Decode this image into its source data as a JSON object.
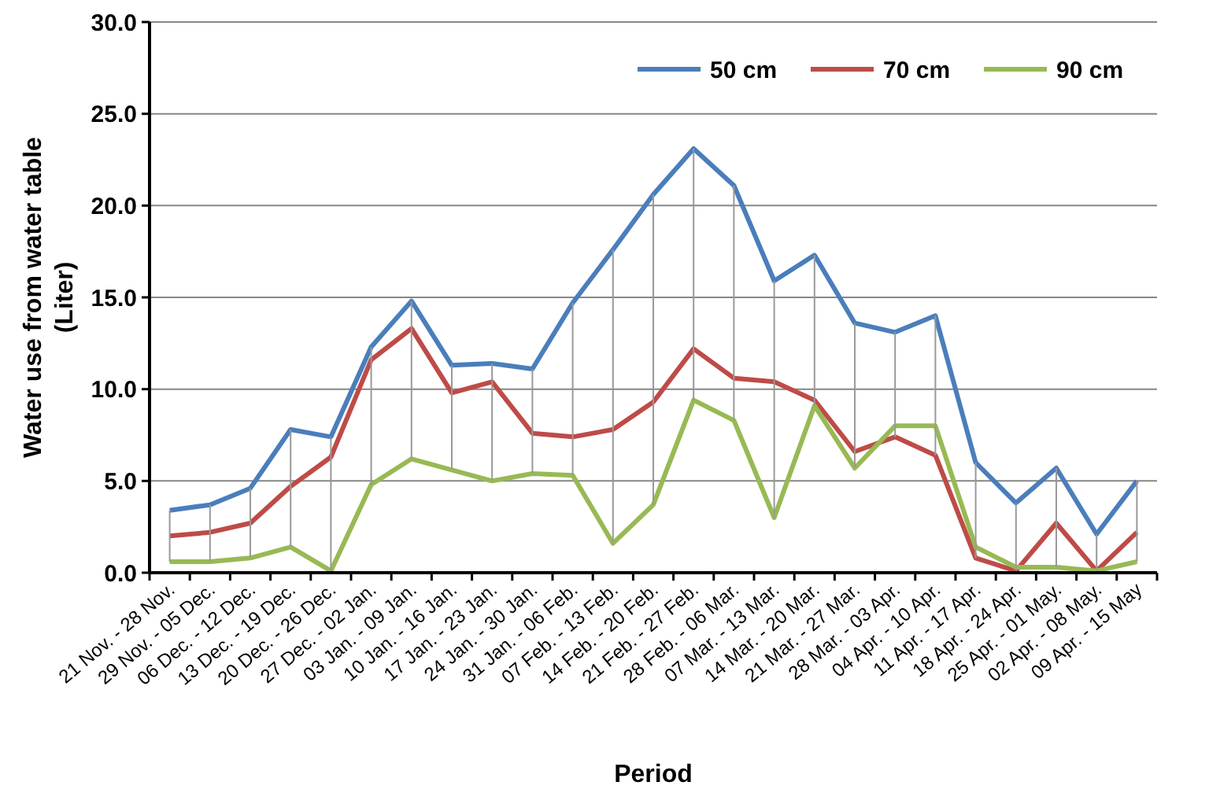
{
  "chart_data": {
    "type": "line",
    "xlabel": "Period",
    "ylabel": "Water use from water table (Liter)",
    "categories": [
      "21 Nov. - 28 Nov.",
      "29 Nov. - 05 Dec.",
      "06 Dec. - 12 Dec.",
      "13 Dec. - 19 Dec.",
      "20 Dec. - 26 Dec.",
      "27 Dec. - 02 Jan.",
      "03 Jan. - 09 Jan.",
      "10 Jan. - 16 Jan.",
      "17 Jan. - 23 Jan.",
      "24 Jan. - 30 Jan.",
      "31 Jan. - 06 Feb.",
      "07 Feb. - 13  Feb.",
      "14 Feb. - 20 Feb.",
      "21 Feb. - 27 Feb.",
      "28 Feb. - 06 Mar.",
      "07 Mar. - 13 Mar.",
      "14 Mar. - 20 Mar.",
      "21 Mar. - 27 Mar.",
      "28 Mar. - 03 Apr.",
      "04 Apr. - 10 Apr.",
      "11 Apr. - 17 Apr.",
      "18 Apr. - 24 Apr.",
      "25 Apr. - 01 May.",
      "02 Apr. - 08 May.",
      "09 Apr. - 15 May"
    ],
    "series": [
      {
        "name": "50 cm",
        "color": "#4a7ebb",
        "values": [
          3.4,
          3.7,
          4.6,
          7.8,
          7.4,
          12.3,
          14.8,
          11.3,
          11.4,
          11.1,
          14.7,
          17.6,
          20.6,
          23.1,
          21.1,
          15.9,
          17.3,
          13.6,
          13.1,
          14.0,
          6.0,
          3.8,
          5.7,
          2.1,
          5.0
        ],
        "errors": [
          [
            0.6,
            3.4
          ],
          [
            0.6,
            3.7
          ],
          [
            0.8,
            4.6
          ],
          [
            1.4,
            7.8
          ],
          [
            0.1,
            7.4
          ],
          [
            4.8,
            12.3
          ],
          [
            6.2,
            14.8
          ],
          [
            5.6,
            11.3
          ],
          [
            5.0,
            11.4
          ],
          [
            5.4,
            11.1
          ],
          [
            5.3,
            14.7
          ],
          [
            1.6,
            17.6
          ],
          [
            3.7,
            20.6
          ],
          [
            9.4,
            23.1
          ],
          [
            8.3,
            21.1
          ],
          [
            3.0,
            15.9
          ],
          [
            9.1,
            17.3
          ],
          [
            5.7,
            13.6
          ],
          [
            7.4,
            13.1
          ],
          [
            6.4,
            14.0
          ],
          [
            0.8,
            6.0
          ],
          [
            0.1,
            3.8
          ],
          [
            0.3,
            5.7
          ],
          [
            0.1,
            2.1
          ],
          [
            0.6,
            5.0
          ]
        ]
      },
      {
        "name": "70 cm",
        "color": "#be4b48",
        "values": [
          2.0,
          2.2,
          2.7,
          4.7,
          6.3,
          11.6,
          13.3,
          9.8,
          10.4,
          7.6,
          7.4,
          7.8,
          9.3,
          12.2,
          10.6,
          10.4,
          9.4,
          6.6,
          7.4,
          6.4,
          0.8,
          0.1,
          2.7,
          0.1,
          2.2
        ]
      },
      {
        "name": "90 cm",
        "color": "#98b954",
        "values": [
          0.6,
          0.6,
          0.8,
          1.4,
          0.1,
          4.8,
          6.2,
          5.6,
          5.0,
          5.4,
          5.3,
          1.6,
          3.7,
          9.4,
          8.3,
          3.0,
          9.1,
          5.7,
          8.0,
          8.0,
          1.4,
          0.3,
          0.3,
          0.1,
          0.6
        ]
      }
    ],
    "ylim": [
      0,
      30
    ],
    "yticks": [
      {
        "value": 0,
        "label": "0.0"
      },
      {
        "value": 5,
        "label": "5.0"
      },
      {
        "value": 10,
        "label": "10.0"
      },
      {
        "value": 15,
        "label": "15.0"
      },
      {
        "value": 20,
        "label": "20.0"
      },
      {
        "value": 25,
        "label": "25.0"
      },
      {
        "value": 30,
        "label": "30.0"
      }
    ],
    "grid": "y",
    "legend": "top right",
    "marker": "none",
    "line_style": "solid"
  }
}
